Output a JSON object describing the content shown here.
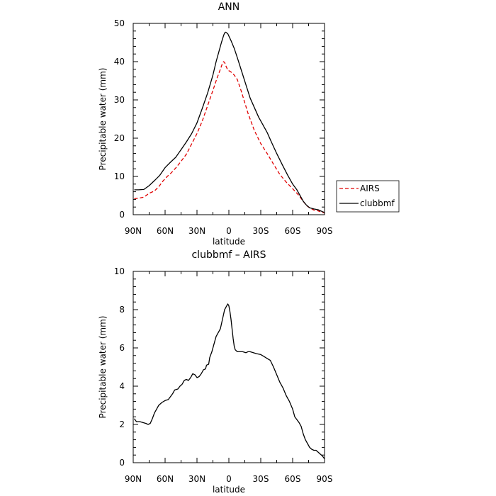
{
  "chart_data": [
    {
      "type": "line",
      "title": "ANN",
      "xlabel": "latitude",
      "ylabel": "Precipitable water (mm)",
      "xticks": [
        "90N",
        "60N",
        "30N",
        "0",
        "30S",
        "60S",
        "90S"
      ],
      "xlim": [
        90,
        -90
      ],
      "ylim": [
        0,
        50
      ],
      "yticks": [
        0,
        10,
        20,
        30,
        40,
        50
      ],
      "legend": {
        "placement": "right",
        "entries": [
          "AIRS",
          "clubbmf"
        ]
      },
      "series": [
        {
          "name": "AIRS",
          "color": "#e00000",
          "dash": true,
          "points": [
            [
              89,
              4.2
            ],
            [
              85,
              4.3
            ],
            [
              80,
              4.6
            ],
            [
              75,
              5.6
            ],
            [
              70,
              6.2
            ],
            [
              66,
              7.3
            ],
            [
              62,
              8.8
            ],
            [
              58,
              10.0
            ],
            [
              54,
              11.0
            ],
            [
              50,
              12.2
            ],
            [
              46,
              13.6
            ],
            [
              40,
              15.8
            ],
            [
              35,
              18.5
            ],
            [
              30,
              21.2
            ],
            [
              25,
              24.5
            ],
            [
              20,
              28.5
            ],
            [
              15,
              32.5
            ],
            [
              11,
              35.8
            ],
            [
              8,
              38.0
            ],
            [
              6,
              39.6
            ],
            [
              5,
              40.0
            ],
            [
              4,
              39.8
            ],
            [
              3,
              39.0
            ],
            [
              1,
              37.8
            ],
            [
              -2,
              37.3
            ],
            [
              -5,
              36.5
            ],
            [
              -8,
              35.3
            ],
            [
              -12,
              32.0
            ],
            [
              -18,
              26.5
            ],
            [
              -24,
              22.0
            ],
            [
              -30,
              18.6
            ],
            [
              -36,
              16.0
            ],
            [
              -42,
              13.2
            ],
            [
              -48,
              10.5
            ],
            [
              -54,
              8.5
            ],
            [
              -60,
              6.8
            ],
            [
              -66,
              5.0
            ],
            [
              -70,
              3.5
            ],
            [
              -73,
              2.4
            ],
            [
              -76,
              1.8
            ],
            [
              -80,
              1.2
            ],
            [
              -84,
              1.0
            ],
            [
              -88,
              0.6
            ],
            [
              -90,
              0.4
            ]
          ]
        },
        {
          "name": "clubbmf",
          "color": "#000000",
          "dash": false,
          "points": [
            [
              89,
              6.5
            ],
            [
              85,
              6.5
            ],
            [
              80,
              6.6
            ],
            [
              75,
              7.6
            ],
            [
              70,
              8.9
            ],
            [
              65,
              10.3
            ],
            [
              60,
              12.3
            ],
            [
              55,
              13.7
            ],
            [
              50,
              15.0
            ],
            [
              45,
              17.0
            ],
            [
              40,
              19.0
            ],
            [
              35,
              21.2
            ],
            [
              30,
              24.0
            ],
            [
              25,
              27.8
            ],
            [
              20,
              31.8
            ],
            [
              15,
              36.5
            ],
            [
              12,
              40.0
            ],
            [
              9,
              43.0
            ],
            [
              7,
              45.0
            ],
            [
              5,
              46.8
            ],
            [
              4,
              47.5
            ],
            [
              3,
              47.7
            ],
            [
              1,
              47.3
            ],
            [
              -2,
              45.5
            ],
            [
              -5,
              43.5
            ],
            [
              -8,
              41.0
            ],
            [
              -12,
              37.5
            ],
            [
              -16,
              34.0
            ],
            [
              -20,
              30.5
            ],
            [
              -24,
              28.0
            ],
            [
              -28,
              25.5
            ],
            [
              -32,
              23.5
            ],
            [
              -36,
              21.5
            ],
            [
              -40,
              19.0
            ],
            [
              -45,
              16.0
            ],
            [
              -50,
              13.2
            ],
            [
              -55,
              10.5
            ],
            [
              -60,
              8.0
            ],
            [
              -64,
              6.5
            ],
            [
              -67,
              5.0
            ],
            [
              -70,
              3.5
            ],
            [
              -73,
              2.5
            ],
            [
              -76,
              1.8
            ],
            [
              -80,
              1.5
            ],
            [
              -84,
              1.3
            ],
            [
              -88,
              0.8
            ],
            [
              -90,
              0.6
            ]
          ]
        }
      ]
    },
    {
      "type": "line",
      "title": "clubbmf – AIRS",
      "xlabel": "latitude",
      "ylabel": "Precipitable water (mm)",
      "xticks": [
        "90N",
        "60N",
        "30N",
        "0",
        "30S",
        "60S",
        "90S"
      ],
      "xlim": [
        90,
        -90
      ],
      "ylim": [
        0,
        10
      ],
      "yticks": [
        0,
        2,
        4,
        6,
        8,
        10
      ],
      "series": [
        {
          "color": "#000000",
          "dash": false,
          "points": [
            [
              89,
              2.3
            ],
            [
              87,
              2.15
            ],
            [
              84,
              2.15
            ],
            [
              81,
              2.1
            ],
            [
              78,
              2.05
            ],
            [
              76,
              2.0
            ],
            [
              74,
              2.05
            ],
            [
              72,
              2.3
            ],
            [
              70,
              2.6
            ],
            [
              68,
              2.8
            ],
            [
              66,
              3.0
            ],
            [
              63,
              3.15
            ],
            [
              60,
              3.25
            ],
            [
              57,
              3.3
            ],
            [
              55,
              3.45
            ],
            [
              53,
              3.6
            ],
            [
              51,
              3.8
            ],
            [
              48,
              3.85
            ],
            [
              46,
              4.0
            ],
            [
              44,
              4.1
            ],
            [
              42,
              4.3
            ],
            [
              40,
              4.35
            ],
            [
              38,
              4.3
            ],
            [
              36,
              4.45
            ],
            [
              34,
              4.65
            ],
            [
              32,
              4.6
            ],
            [
              30,
              4.45
            ],
            [
              28,
              4.5
            ],
            [
              26,
              4.65
            ],
            [
              24,
              4.85
            ],
            [
              22,
              4.9
            ],
            [
              21,
              5.1
            ],
            [
              19,
              5.15
            ],
            [
              18,
              5.5
            ],
            [
              16,
              5.8
            ],
            [
              14,
              6.2
            ],
            [
              12,
              6.6
            ],
            [
              10,
              6.8
            ],
            [
              8,
              7.0
            ],
            [
              6,
              7.5
            ],
            [
              4,
              8.0
            ],
            [
              2,
              8.2
            ],
            [
              1,
              8.3
            ],
            [
              0,
              8.2
            ],
            [
              -1,
              7.9
            ],
            [
              -2,
              7.5
            ],
            [
              -3,
              7.0
            ],
            [
              -4,
              6.5
            ],
            [
              -5,
              6.1
            ],
            [
              -6,
              5.9
            ],
            [
              -8,
              5.8
            ],
            [
              -10,
              5.8
            ],
            [
              -13,
              5.8
            ],
            [
              -16,
              5.75
            ],
            [
              -18,
              5.8
            ],
            [
              -20,
              5.8
            ],
            [
              -23,
              5.75
            ],
            [
              -26,
              5.7
            ],
            [
              -30,
              5.65
            ],
            [
              -33,
              5.55
            ],
            [
              -36,
              5.45
            ],
            [
              -39,
              5.35
            ],
            [
              -42,
              5.0
            ],
            [
              -45,
              4.6
            ],
            [
              -48,
              4.2
            ],
            [
              -51,
              3.9
            ],
            [
              -54,
              3.5
            ],
            [
              -57,
              3.2
            ],
            [
              -60,
              2.8
            ],
            [
              -62,
              2.4
            ],
            [
              -64,
              2.25
            ],
            [
              -66,
              2.1
            ],
            [
              -68,
              1.9
            ],
            [
              -70,
              1.5
            ],
            [
              -72,
              1.2
            ],
            [
              -74,
              1.0
            ],
            [
              -76,
              0.8
            ],
            [
              -78,
              0.7
            ],
            [
              -80,
              0.65
            ],
            [
              -82,
              0.65
            ],
            [
              -84,
              0.55
            ],
            [
              -86,
              0.45
            ],
            [
              -88,
              0.35
            ],
            [
              -90,
              0.2
            ]
          ]
        }
      ]
    }
  ]
}
